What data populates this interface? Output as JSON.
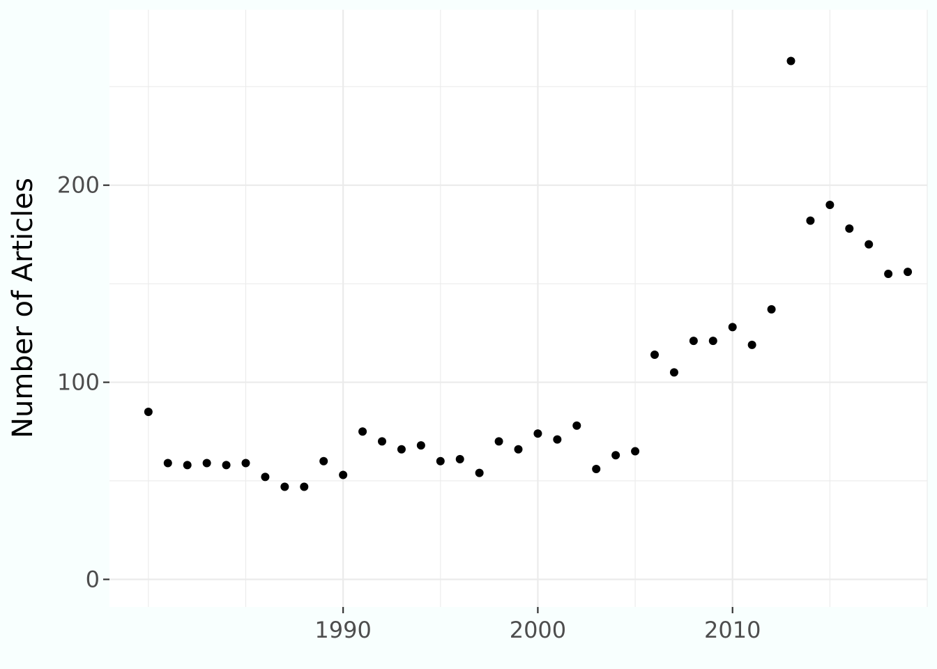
{
  "chart_data": {
    "type": "scatter",
    "title": "",
    "xlabel": "",
    "ylabel": "Number of Articles",
    "xlim": [
      1978,
      2020
    ],
    "ylim": [
      -14,
      289
    ],
    "x_ticks": [
      1990,
      2000,
      2010
    ],
    "x_tick_labels": [
      "1990",
      "2000",
      "2010"
    ],
    "x_minor_breaks": [
      1980,
      1985,
      1995,
      2005,
      2015,
      2020
    ],
    "y_ticks": [
      0,
      100,
      200
    ],
    "y_tick_labels": [
      "0",
      "100",
      "200"
    ],
    "y_minor_breaks": [
      50,
      150,
      250
    ],
    "grid": true,
    "legend": "none",
    "colors": {
      "background": "#f8fffe",
      "panel": "#ffffff",
      "grid": "#ebebeb",
      "point": "#000000",
      "tick_label": "#4d4d4d",
      "axis_title": "#000000"
    },
    "x": [
      1980,
      1981,
      1982,
      1983,
      1984,
      1985,
      1986,
      1987,
      1988,
      1989,
      1990,
      1991,
      1992,
      1993,
      1994,
      1995,
      1996,
      1997,
      1998,
      1999,
      2000,
      2001,
      2002,
      2003,
      2004,
      2005,
      2006,
      2007,
      2008,
      2009,
      2010,
      2011,
      2012,
      2013,
      2014,
      2015,
      2016,
      2017,
      2018,
      2019
    ],
    "y": [
      85,
      59,
      58,
      59,
      58,
      59,
      52,
      47,
      47,
      60,
      53,
      75,
      70,
      66,
      68,
      60,
      61,
      54,
      70,
      66,
      74,
      71,
      78,
      56,
      63,
      65,
      114,
      105,
      121,
      121,
      128,
      119,
      137,
      263,
      182,
      190,
      178,
      170,
      155,
      156
    ]
  }
}
